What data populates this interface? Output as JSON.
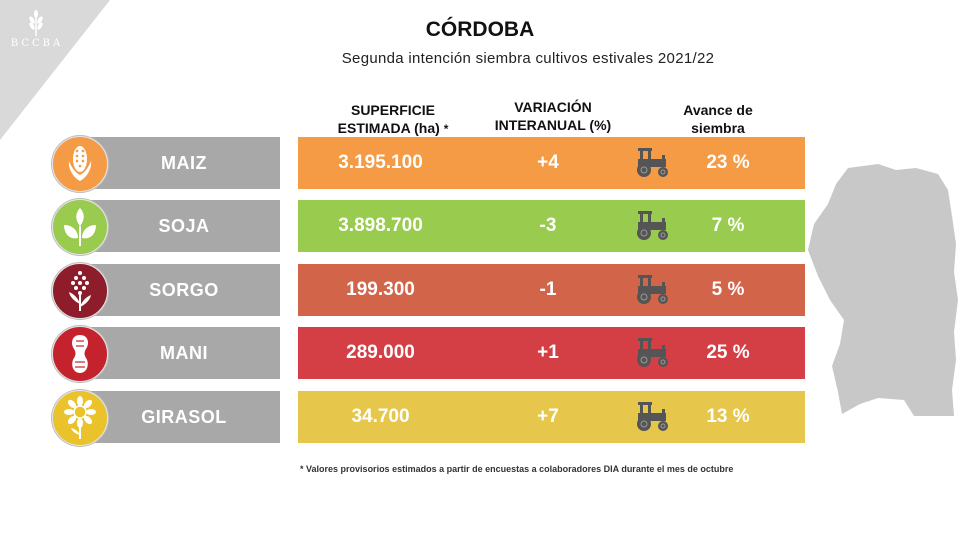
{
  "logo": {
    "text": "BCCBA"
  },
  "header": {
    "title": "CÓRDOBA",
    "subtitle": "Segunda intención siembra cultivos estivales 2021/22"
  },
  "columns": {
    "superficie_line1": "SUPERFICIE",
    "superficie_line2": "ESTIMADA (ha)",
    "superficie_mark": "*",
    "variacion_line1": "VARIACIÓN",
    "variacion_line2": "INTERANUAL (%)",
    "avance_line1": "Avance de",
    "avance_line2": "siembra"
  },
  "crops": [
    {
      "name": "MAIZ",
      "superficie": "3.195.100",
      "variacion": "+4",
      "avance": "23 %",
      "color": "#f59a45",
      "icon": "corn-icon"
    },
    {
      "name": "SOJA",
      "superficie": "3.898.700",
      "variacion": "-3",
      "avance": "7 %",
      "color": "#98cb4e",
      "icon": "soybean-leaves-icon"
    },
    {
      "name": "SORGO",
      "superficie": "199.300",
      "variacion": "-1",
      "avance": "5 %",
      "color": "#d26449",
      "icon": "sorghum-icon"
    },
    {
      "name": "MANI",
      "superficie": "289.000",
      "variacion": "+1",
      "avance": "25 %",
      "color": "#d33f45",
      "icon": "peanut-icon"
    },
    {
      "name": "GIRASOL",
      "superficie": "34.700",
      "variacion": "+7",
      "avance": "13 %",
      "color": "#e6c74c",
      "icon": "sunflower-icon"
    }
  ],
  "footnote": {
    "mark": "*",
    "text": "Valores provisorios estimados a partir de encuestas a colaboradores DIA durante el mes de octubre"
  },
  "colors": {
    "label_gray": "#a8a8a8",
    "tractor": "#555555",
    "map": "#c8c8c8"
  }
}
